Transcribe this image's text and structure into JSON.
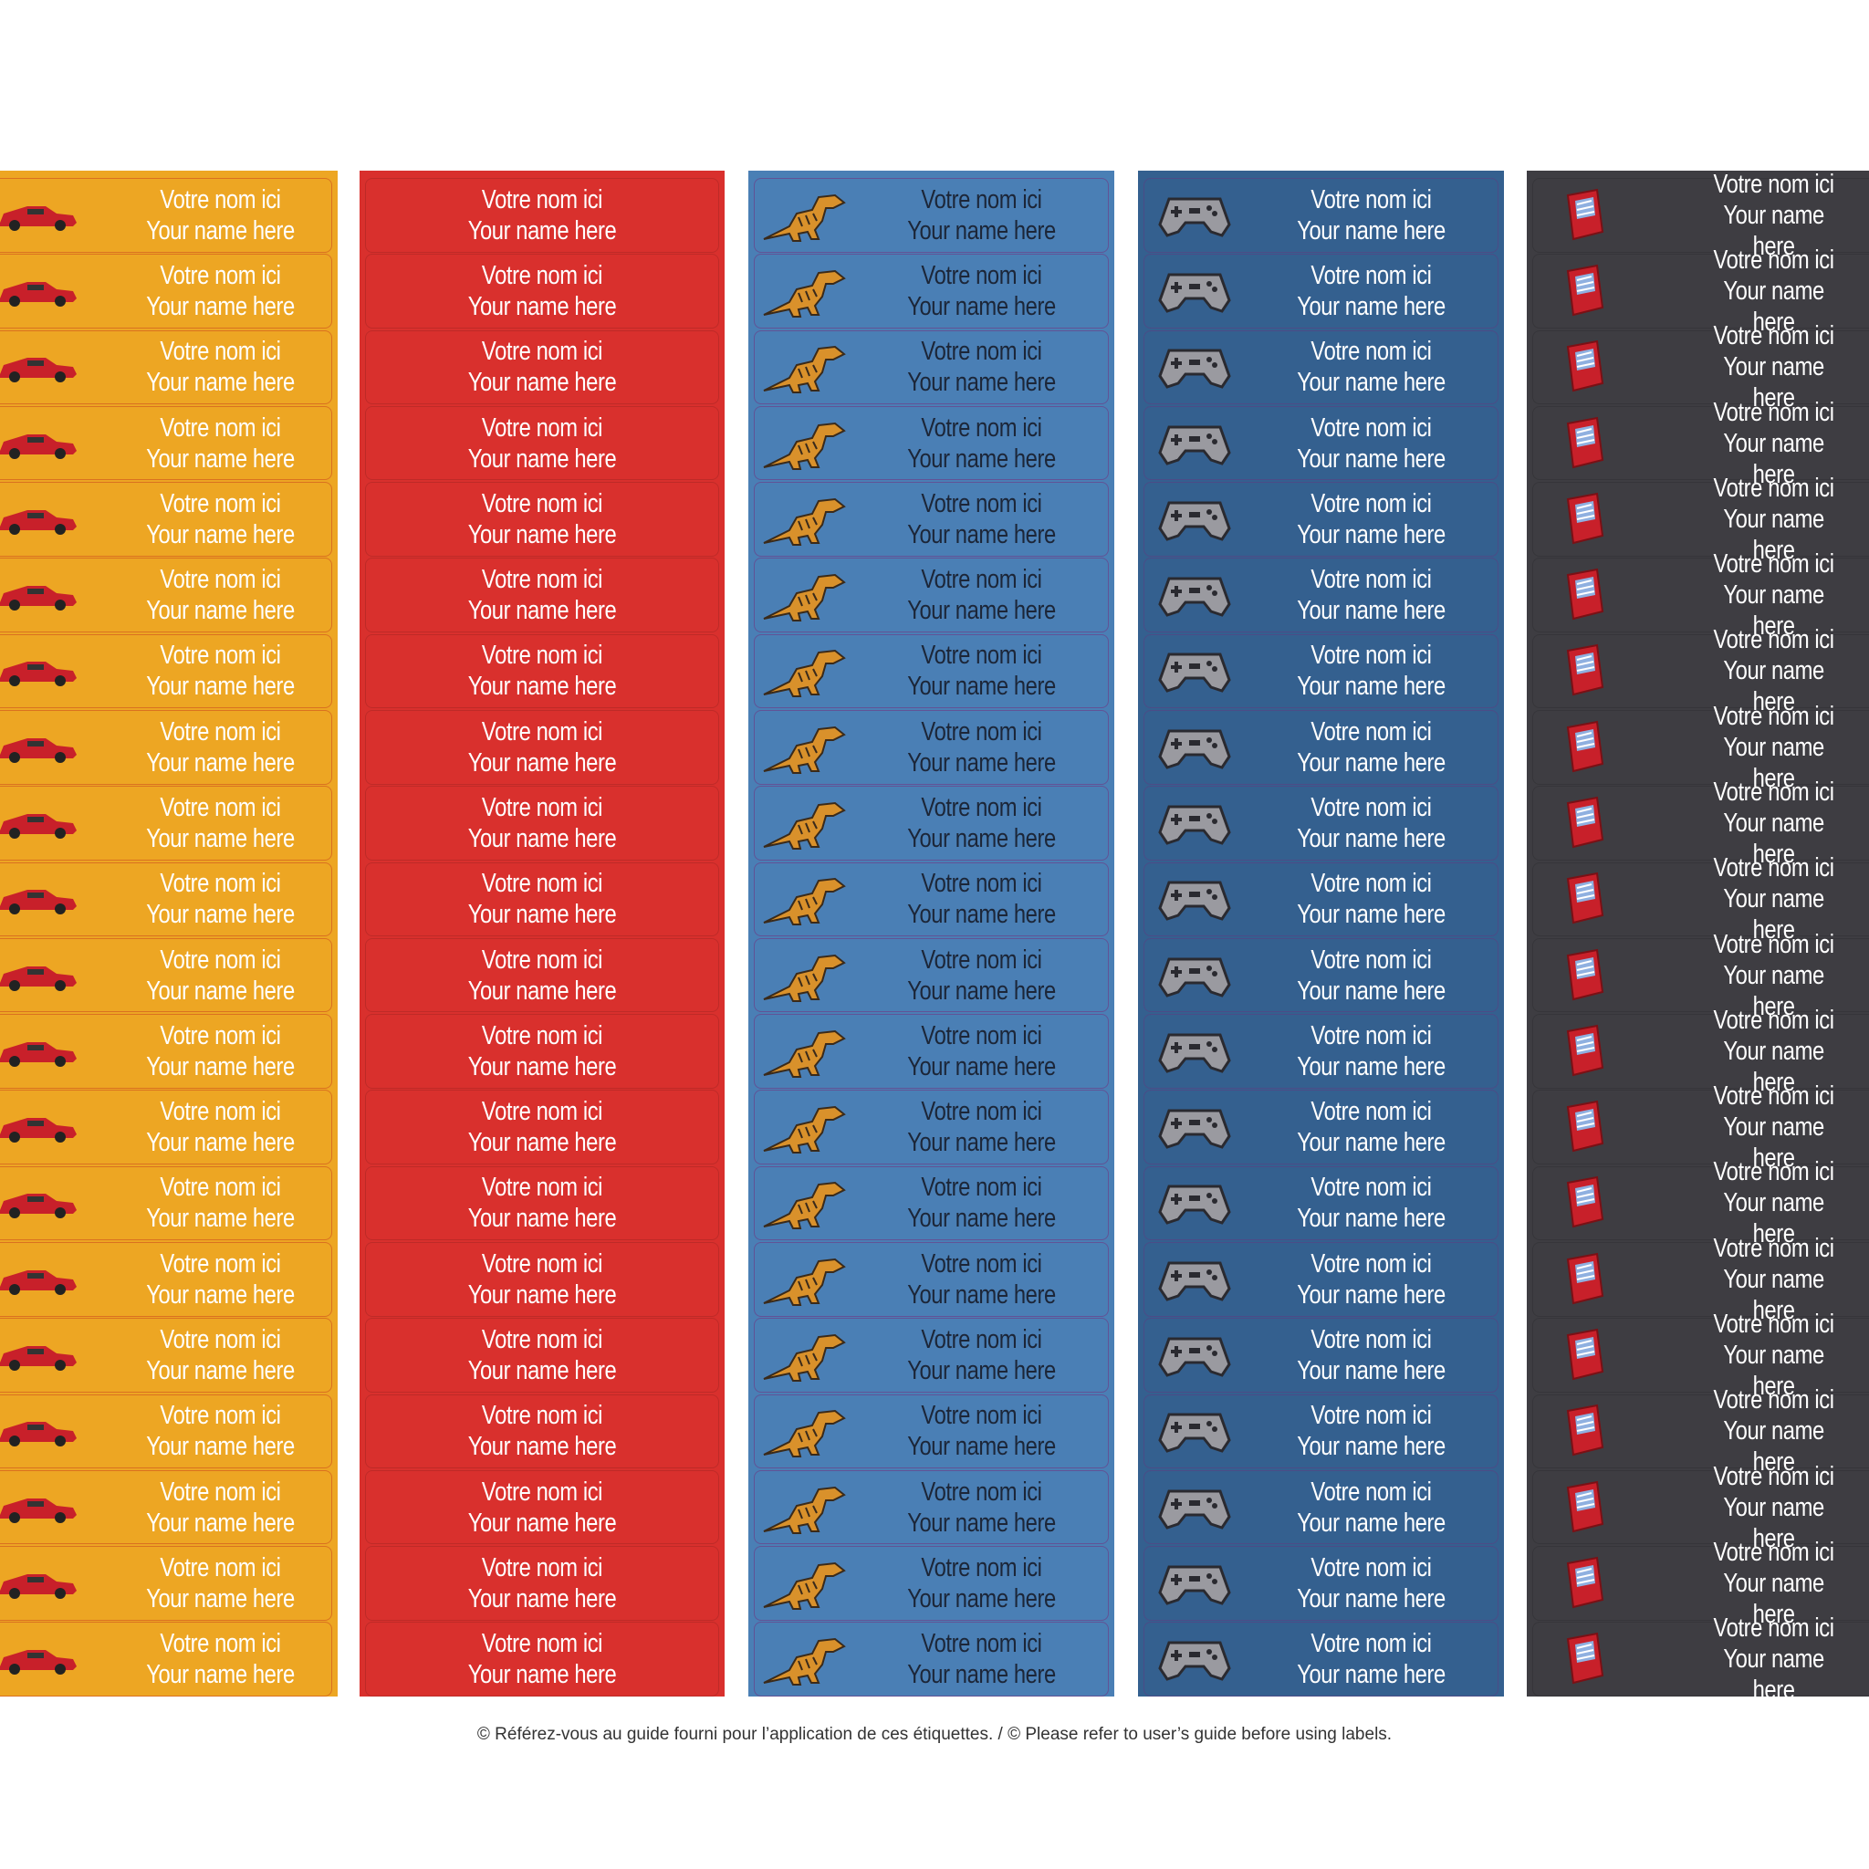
{
  "sheet": {
    "columns": [
      {
        "labels": [
          [
            "Votre nom ici",
            "Your name here"
          ],
          [
            "Votre nom ici",
            "Your name here"
          ],
          [
            "Votre nom ici",
            "Your name here"
          ],
          [
            "Votre nom ici",
            "Your name here"
          ],
          [
            "Votre nom ici",
            "Your name here"
          ],
          [
            "Votre nom ici",
            "Your name here"
          ],
          [
            "Votre nom ici",
            "Your name here"
          ],
          [
            "Votre nom ici",
            "Your name here"
          ],
          [
            "Votre nom ici",
            "Your name here"
          ],
          [
            "Votre nom ici",
            "Your name here"
          ],
          [
            "Votre nom ici",
            "Your name here"
          ],
          [
            "Votre nom ici",
            "Your name here"
          ],
          [
            "Votre nom ici",
            "Your name here"
          ],
          [
            "Votre nom ici",
            "Your name here"
          ],
          [
            "Votre nom ici",
            "Your name here"
          ],
          [
            "Votre nom ici",
            "Your name here"
          ],
          [
            "Votre nom ici",
            "Your name here"
          ],
          [
            "Votre nom ici",
            "Your name here"
          ],
          [
            "Votre nom ici",
            "Your name here"
          ],
          [
            "Votre nom ici",
            "Your name here"
          ]
        ]
      },
      {
        "labels": [
          [
            "Votre nom ici",
            "Your name here"
          ],
          [
            "Votre nom ici",
            "Your name here"
          ],
          [
            "Votre nom ici",
            "Your name here"
          ],
          [
            "Votre nom ici",
            "Your name here"
          ],
          [
            "Votre nom ici",
            "Your name here"
          ],
          [
            "Votre nom ici",
            "Your name here"
          ],
          [
            "Votre nom ici",
            "Your name here"
          ],
          [
            "Votre nom ici",
            "Your name here"
          ],
          [
            "Votre nom ici",
            "Your name here"
          ],
          [
            "Votre nom ici",
            "Your name here"
          ],
          [
            "Votre nom ici",
            "Your name here"
          ],
          [
            "Votre nom ici",
            "Your name here"
          ],
          [
            "Votre nom ici",
            "Your name here"
          ],
          [
            "Votre nom ici",
            "Your name here"
          ],
          [
            "Votre nom ici",
            "Your name here"
          ],
          [
            "Votre nom ici",
            "Your name here"
          ],
          [
            "Votre nom ici",
            "Your name here"
          ],
          [
            "Votre nom ici",
            "Your name here"
          ],
          [
            "Votre nom ici",
            "Your name here"
          ],
          [
            "Votre nom ici",
            "Your name here"
          ]
        ]
      },
      {
        "labels": [
          [
            "Votre nom ici",
            "Your name here"
          ],
          [
            "Votre nom ici",
            "Your name here"
          ],
          [
            "Votre nom ici",
            "Your name here"
          ],
          [
            "Votre nom ici",
            "Your name here"
          ],
          [
            "Votre nom ici",
            "Your name here"
          ],
          [
            "Votre nom ici",
            "Your name here"
          ],
          [
            "Votre nom ici",
            "Your name here"
          ],
          [
            "Votre nom ici",
            "Your name here"
          ],
          [
            "Votre nom ici",
            "Your name here"
          ],
          [
            "Votre nom ici",
            "Your name here"
          ],
          [
            "Votre nom ici",
            "Your name here"
          ],
          [
            "Votre nom ici",
            "Your name here"
          ],
          [
            "Votre nom ici",
            "Your name here"
          ],
          [
            "Votre nom ici",
            "Your name here"
          ],
          [
            "Votre nom ici",
            "Your name here"
          ],
          [
            "Votre nom ici",
            "Your name here"
          ],
          [
            "Votre nom ici",
            "Your name here"
          ],
          [
            "Votre nom ici",
            "Your name here"
          ],
          [
            "Votre nom ici",
            "Your name here"
          ],
          [
            "Votre nom ici",
            "Your name here"
          ]
        ]
      },
      {
        "labels": [
          [
            "Votre nom ici",
            "Your name here"
          ],
          [
            "Votre nom ici",
            "Your name here"
          ],
          [
            "Votre nom ici",
            "Your name here"
          ],
          [
            "Votre nom ici",
            "Your name here"
          ],
          [
            "Votre nom ici",
            "Your name here"
          ],
          [
            "Votre nom ici",
            "Your name here"
          ],
          [
            "Votre nom ici",
            "Your name here"
          ],
          [
            "Votre nom ici",
            "Your name here"
          ],
          [
            "Votre nom ici",
            "Your name here"
          ],
          [
            "Votre nom ici",
            "Your name here"
          ],
          [
            "Votre nom ici",
            "Your name here"
          ],
          [
            "Votre nom ici",
            "Your name here"
          ],
          [
            "Votre nom ici",
            "Your name here"
          ],
          [
            "Votre nom ici",
            "Your name here"
          ],
          [
            "Votre nom ici",
            "Your name here"
          ],
          [
            "Votre nom ici",
            "Your name here"
          ],
          [
            "Votre nom ici",
            "Your name here"
          ],
          [
            "Votre nom ici",
            "Your name here"
          ],
          [
            "Votre nom ici",
            "Your name here"
          ],
          [
            "Votre nom ici",
            "Your name here"
          ]
        ]
      },
      {
        "labels": [
          [
            "Votre nom ici",
            "Your name here"
          ],
          [
            "Votre nom ici",
            "Your name here"
          ],
          [
            "Votre nom ici",
            "Your name here"
          ],
          [
            "Votre nom ici",
            "Your name here"
          ],
          [
            "Votre nom ici",
            "Your name here"
          ],
          [
            "Votre nom ici",
            "Your name here"
          ],
          [
            "Votre nom ici",
            "Your name here"
          ],
          [
            "Votre nom ici",
            "Your name here"
          ],
          [
            "Votre nom ici",
            "Your name here"
          ],
          [
            "Votre nom ici",
            "Your name here"
          ],
          [
            "Votre nom ici",
            "Your name here"
          ],
          [
            "Votre nom ici",
            "Your name here"
          ],
          [
            "Votre nom ici",
            "Your name here"
          ],
          [
            "Votre nom ici",
            "Your name here"
          ],
          [
            "Votre nom ici",
            "Your name here"
          ],
          [
            "Votre nom ici",
            "Your name here"
          ],
          [
            "Votre nom ici",
            "Your name here"
          ],
          [
            "Votre nom ici",
            "Your name here"
          ],
          [
            "Votre nom ici",
            "Your name here"
          ],
          [
            "Votre nom ici",
            "Your name here"
          ]
        ]
      }
    ]
  },
  "footer": "© Référez-vous au guide fourni pour l’application de ces étiquettes. / © Please refer to user’s guide before using labels."
}
